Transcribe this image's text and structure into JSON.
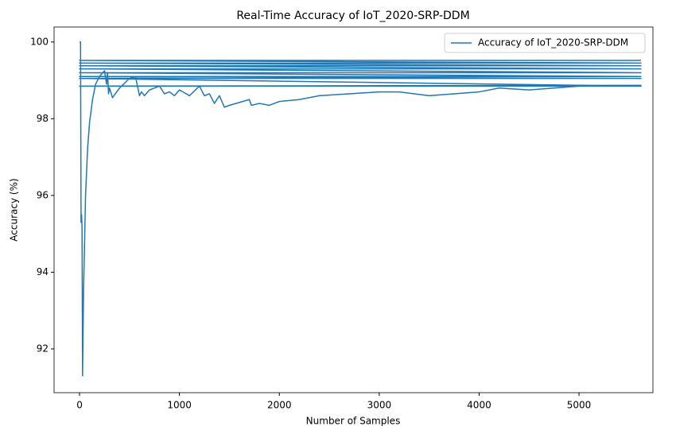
{
  "chart_data": {
    "type": "line",
    "title": "Real-Time Accuracy of IoT_2020-SRP-DDM",
    "x_label": "Number of Samples",
    "y_label": "Accuracy (%)",
    "x": [
      0,
      10,
      15,
      20,
      25,
      30,
      40,
      60,
      80,
      100,
      130,
      160,
      200,
      250,
      270,
      280,
      290,
      300,
      330,
      400,
      500,
      560,
      600,
      620,
      650,
      700,
      800,
      850,
      900,
      950,
      1000,
      1100,
      1200,
      1250,
      1300,
      1350,
      1400,
      1450,
      1500,
      1700,
      1720,
      1800,
      1900,
      2000,
      2200,
      2400,
      2700,
      3000,
      3200,
      3500,
      4000,
      4200,
      4500,
      5000,
      5620,
      0,
      5620,
      0,
      5620,
      0,
      5620,
      0,
      5620,
      0,
      5620,
      0,
      5620,
      0,
      5620,
      0,
      5620
    ],
    "series": [
      {
        "name": "Accuracy of IoT_2020-SRP-DDM",
        "color": "#1f77b4",
        "values": [
          100,
          100,
          95.3,
          95.5,
          95.2,
          91.3,
          93.5,
          96,
          97.2,
          97.9,
          98.5,
          98.9,
          99.1,
          99.25,
          98.9,
          99.2,
          98.65,
          98.8,
          98.55,
          98.8,
          99.05,
          99.1,
          98.6,
          98.7,
          98.6,
          98.75,
          98.85,
          98.65,
          98.7,
          98.6,
          98.75,
          98.6,
          98.85,
          98.6,
          98.65,
          98.4,
          98.6,
          98.3,
          98.35,
          98.5,
          98.35,
          98.4,
          98.35,
          98.45,
          98.5,
          98.6,
          98.65,
          98.7,
          98.7,
          98.6,
          98.7,
          98.8,
          98.75,
          98.85,
          98.87,
          98.85,
          98.85,
          99.05,
          99.05,
          99.1,
          99.1,
          99.2,
          99.2,
          99.3,
          99.3,
          99.38,
          99.38,
          99.45,
          99.45,
          99.52,
          99.52
        ]
      }
    ],
    "xlim": [
      -255,
      5740
    ],
    "ylim": [
      90.86,
      100.39
    ],
    "xticks": [
      0,
      1000,
      2000,
      3000,
      4000,
      5000
    ],
    "yticks": [
      92,
      94,
      96,
      98,
      100
    ],
    "grid": false,
    "legend": "upper-right"
  }
}
